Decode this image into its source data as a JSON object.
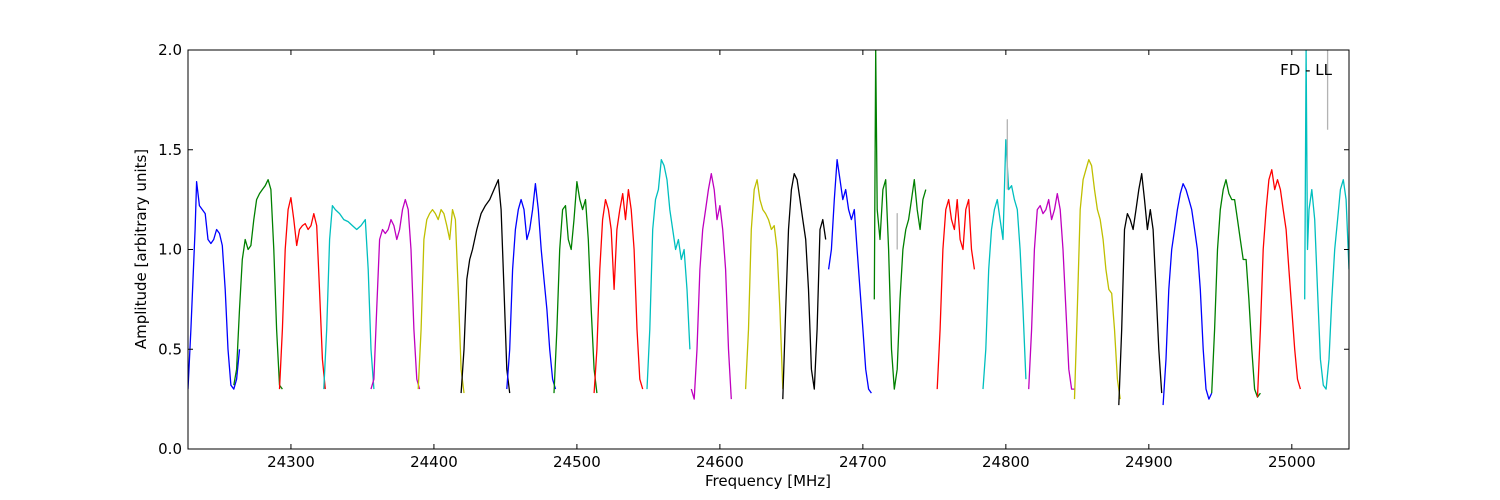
{
  "chart_data": {
    "type": "line",
    "title": "",
    "xlabel": "Frequency [MHz]",
    "ylabel": "Amplitude [arbitrary units]",
    "annotation": "FD - LL",
    "xlim": [
      24228,
      25040
    ],
    "ylim": [
      0.0,
      2.0
    ],
    "x_ticks": [
      24300,
      24400,
      24500,
      24600,
      24700,
      24800,
      24900,
      25000
    ],
    "y_ticks": [
      0.0,
      0.5,
      1.0,
      1.5,
      2.0
    ],
    "x_tick_labels": [
      "24300",
      "24400",
      "24500",
      "24600",
      "24700",
      "24800",
      "24900",
      "25000"
    ],
    "y_tick_labels": [
      "0.0",
      "0.5",
      "1.0",
      "1.5",
      "2.0"
    ],
    "grid": false,
    "legend": "none",
    "series": [
      {
        "color": "#0000ff",
        "x": [
          24228,
          24230,
          24233,
          24234,
          24236,
          24238,
          24240,
          24242,
          24244,
          24246,
          24248,
          24250,
          24252,
          24254,
          24256,
          24258,
          24260,
          24262,
          24264
        ],
        "y": [
          0.3,
          0.6,
          1.1,
          1.34,
          1.22,
          1.2,
          1.18,
          1.05,
          1.03,
          1.05,
          1.1,
          1.08,
          1.02,
          0.8,
          0.5,
          0.32,
          0.3,
          0.35,
          0.5
        ]
      },
      {
        "color": "#008000",
        "x": [
          24260,
          24262,
          24264,
          24266,
          24268,
          24270,
          24272,
          24274,
          24276,
          24278,
          24280,
          24282,
          24284,
          24286,
          24288,
          24290,
          24292,
          24294
        ],
        "y": [
          0.32,
          0.4,
          0.7,
          0.95,
          1.05,
          1.0,
          1.02,
          1.15,
          1.25,
          1.28,
          1.3,
          1.32,
          1.35,
          1.3,
          1.0,
          0.6,
          0.32,
          0.3
        ]
      },
      {
        "color": "#ff0000",
        "x": [
          24292,
          24294,
          24296,
          24298,
          24300,
          24302,
          24304,
          24306,
          24308,
          24310,
          24312,
          24314,
          24316,
          24318,
          24320,
          24322,
          24324
        ],
        "y": [
          0.3,
          0.6,
          1.0,
          1.2,
          1.26,
          1.15,
          1.02,
          1.1,
          1.12,
          1.13,
          1.1,
          1.12,
          1.18,
          1.12,
          0.8,
          0.45,
          0.3
        ]
      },
      {
        "color": "#00bfbf",
        "x": [
          24323,
          24325,
          24327,
          24329,
          24331,
          24334,
          24337,
          24340,
          24343,
          24346,
          24349,
          24352,
          24354,
          24356,
          24358
        ],
        "y": [
          0.3,
          0.6,
          1.05,
          1.22,
          1.2,
          1.18,
          1.15,
          1.14,
          1.12,
          1.1,
          1.12,
          1.15,
          0.9,
          0.5,
          0.3
        ]
      },
      {
        "color": "#bf00bf",
        "x": [
          24356,
          24358,
          24360,
          24362,
          24364,
          24366,
          24368,
          24370,
          24372,
          24374,
          24376,
          24378,
          24380,
          24382,
          24384,
          24386,
          24388,
          24390
        ],
        "y": [
          0.3,
          0.35,
          0.7,
          1.05,
          1.1,
          1.08,
          1.1,
          1.15,
          1.12,
          1.05,
          1.1,
          1.2,
          1.25,
          1.2,
          1.0,
          0.6,
          0.35,
          0.3
        ]
      },
      {
        "color": "#bfbf00",
        "x": [
          24389,
          24391,
          24393,
          24395,
          24397,
          24399,
          24401,
          24403,
          24405,
          24407,
          24409,
          24411,
          24413,
          24415,
          24417,
          24419,
          24421
        ],
        "y": [
          0.3,
          0.6,
          1.05,
          1.15,
          1.18,
          1.2,
          1.18,
          1.15,
          1.2,
          1.18,
          1.12,
          1.05,
          1.2,
          1.15,
          0.8,
          0.4,
          0.28
        ]
      },
      {
        "color": "#000000",
        "x": [
          24419,
          24421,
          24423,
          24425,
          24427,
          24430,
          24433,
          24436,
          24439,
          24442,
          24445,
          24447,
          24449,
          24451,
          24453
        ],
        "y": [
          0.28,
          0.5,
          0.85,
          0.95,
          1.0,
          1.1,
          1.18,
          1.22,
          1.25,
          1.3,
          1.35,
          1.2,
          0.8,
          0.4,
          0.28
        ]
      },
      {
        "color": "#0000ff",
        "x": [
          24451,
          24453,
          24455,
          24457,
          24459,
          24461,
          24463,
          24465,
          24467,
          24469,
          24471,
          24473,
          24475,
          24477,
          24479,
          24481,
          24483,
          24485
        ],
        "y": [
          0.3,
          0.5,
          0.9,
          1.1,
          1.2,
          1.25,
          1.2,
          1.05,
          1.1,
          1.2,
          1.33,
          1.2,
          1.0,
          0.85,
          0.7,
          0.5,
          0.35,
          0.3
        ]
      },
      {
        "color": "#008000",
        "x": [
          24484,
          24486,
          24488,
          24490,
          24492,
          24494,
          24496,
          24498,
          24500,
          24502,
          24504,
          24506,
          24508,
          24510,
          24512,
          24514
        ],
        "y": [
          0.28,
          0.6,
          1.0,
          1.2,
          1.22,
          1.05,
          1.0,
          1.15,
          1.34,
          1.25,
          1.2,
          1.25,
          1.05,
          0.7,
          0.4,
          0.28
        ]
      },
      {
        "color": "#ff0000",
        "x": [
          24512,
          24514,
          24516,
          24518,
          24520,
          24522,
          24524,
          24526,
          24528,
          24530,
          24532,
          24534,
          24536,
          24538,
          24540,
          24542,
          24544,
          24546
        ],
        "y": [
          0.28,
          0.5,
          0.9,
          1.15,
          1.25,
          1.2,
          1.1,
          0.8,
          1.1,
          1.2,
          1.28,
          1.15,
          1.3,
          1.2,
          1.0,
          0.6,
          0.35,
          0.3
        ]
      },
      {
        "color": "#00bfbf",
        "x": [
          24549,
          24551,
          24553,
          24555,
          24557,
          24559,
          24561,
          24563,
          24565,
          24567,
          24569,
          24571,
          24573,
          24575,
          24577,
          24579
        ],
        "y": [
          0.3,
          0.6,
          1.1,
          1.25,
          1.3,
          1.45,
          1.42,
          1.35,
          1.2,
          1.1,
          1.0,
          1.05,
          0.95,
          1.0,
          0.8,
          0.5
        ]
      },
      {
        "color": "#bf00bf",
        "x": [
          24580,
          24582,
          24584,
          24586,
          24588,
          24590,
          24592,
          24594,
          24596,
          24598,
          24600,
          24602,
          24604,
          24606,
          24608
        ],
        "y": [
          0.3,
          0.25,
          0.5,
          0.9,
          1.1,
          1.2,
          1.3,
          1.38,
          1.3,
          1.15,
          1.22,
          1.1,
          0.9,
          0.5,
          0.25
        ]
      },
      {
        "color": "#bfbf00",
        "x": [
          24618,
          24620,
          24622,
          24624,
          24626,
          24628,
          24630,
          24632,
          24634,
          24636,
          24638,
          24640,
          24642,
          24644
        ],
        "y": [
          0.3,
          0.6,
          1.1,
          1.3,
          1.35,
          1.25,
          1.2,
          1.18,
          1.15,
          1.1,
          1.12,
          1.0,
          0.7,
          0.3
        ]
      },
      {
        "color": "#000000",
        "x": [
          24644,
          24646,
          24648,
          24650,
          24652,
          24654,
          24656,
          24658,
          24660,
          24662,
          24664,
          24666,
          24668,
          24670,
          24672,
          24674
        ],
        "y": [
          0.25,
          0.7,
          1.1,
          1.3,
          1.38,
          1.35,
          1.25,
          1.15,
          1.05,
          0.8,
          0.4,
          0.3,
          0.6,
          1.1,
          1.15,
          1.05
        ]
      },
      {
        "color": "#0000ff",
        "x": [
          24676,
          24678,
          24680,
          24682,
          24684,
          24686,
          24688,
          24690,
          24692,
          24694,
          24696,
          24698,
          24700,
          24702,
          24704,
          24706
        ],
        "y": [
          0.9,
          1.0,
          1.25,
          1.45,
          1.35,
          1.25,
          1.3,
          1.2,
          1.15,
          1.2,
          1.0,
          0.8,
          0.6,
          0.4,
          0.3,
          0.28
        ]
      },
      {
        "color": "#008000",
        "x": [
          24708,
          24709,
          24710,
          24712,
          24714,
          24716,
          24718,
          24720,
          24722,
          24724,
          24726,
          24728,
          24730,
          24732,
          24734,
          24736,
          24738,
          24740,
          24742,
          24744
        ],
        "y": [
          0.75,
          2.0,
          1.2,
          1.05,
          1.3,
          1.35,
          1.0,
          0.5,
          0.3,
          0.4,
          0.75,
          1.0,
          1.1,
          1.15,
          1.25,
          1.35,
          1.2,
          1.1,
          1.25,
          1.3
        ]
      },
      {
        "color": "#ff0000",
        "x": [
          24752,
          24754,
          24756,
          24758,
          24760,
          24762,
          24764,
          24766,
          24768,
          24770,
          24772,
          24774,
          24776,
          24778
        ],
        "y": [
          0.3,
          0.6,
          1.0,
          1.2,
          1.25,
          1.15,
          1.1,
          1.25,
          1.05,
          1.0,
          1.2,
          1.25,
          1.0,
          0.9
        ]
      },
      {
        "color": "#00bfbf",
        "x": [
          24784,
          24786,
          24788,
          24790,
          24792,
          24794,
          24796,
          24798,
          24800,
          24802,
          24804,
          24806,
          24808,
          24810,
          24812,
          24814
        ],
        "y": [
          0.3,
          0.5,
          0.9,
          1.1,
          1.2,
          1.25,
          1.15,
          1.05,
          1.55,
          1.3,
          1.32,
          1.25,
          1.2,
          1.0,
          0.7,
          0.35
        ]
      },
      {
        "color": "#bf00bf",
        "x": [
          24816,
          24818,
          24820,
          24822,
          24824,
          24826,
          24828,
          24830,
          24832,
          24834,
          24836,
          24838,
          24840,
          24842,
          24844,
          24846,
          24848
        ],
        "y": [
          0.3,
          0.6,
          1.0,
          1.2,
          1.22,
          1.18,
          1.2,
          1.25,
          1.15,
          1.2,
          1.28,
          1.2,
          1.0,
          0.7,
          0.4,
          0.3,
          0.3
        ]
      },
      {
        "color": "#bfbf00",
        "x": [
          24848,
          24850,
          24852,
          24854,
          24856,
          24858,
          24860,
          24862,
          24864,
          24866,
          24868,
          24870,
          24872,
          24874,
          24876,
          24878,
          24880
        ],
        "y": [
          0.25,
          0.7,
          1.2,
          1.35,
          1.4,
          1.45,
          1.42,
          1.3,
          1.2,
          1.15,
          1.05,
          0.9,
          0.8,
          0.78,
          0.6,
          0.35,
          0.25
        ]
      },
      {
        "color": "#000000",
        "x": [
          24879,
          24881,
          24883,
          24885,
          24887,
          24889,
          24891,
          24893,
          24895,
          24897,
          24899,
          24901,
          24903,
          24905,
          24907,
          24909
        ],
        "y": [
          0.22,
          0.6,
          1.1,
          1.18,
          1.15,
          1.1,
          1.2,
          1.3,
          1.38,
          1.25,
          1.1,
          1.2,
          1.1,
          0.8,
          0.5,
          0.28
        ]
      },
      {
        "color": "#0000ff",
        "x": [
          24910,
          24912,
          24914,
          24916,
          24918,
          24920,
          24922,
          24924,
          24926,
          24928,
          24930,
          24932,
          24934,
          24936,
          24938,
          24940,
          24942,
          24944
        ],
        "y": [
          0.22,
          0.45,
          0.8,
          1.0,
          1.1,
          1.2,
          1.28,
          1.33,
          1.3,
          1.25,
          1.2,
          1.1,
          1.0,
          0.8,
          0.5,
          0.3,
          0.25,
          0.28
        ]
      },
      {
        "color": "#008000",
        "x": [
          24944,
          24946,
          24948,
          24950,
          24952,
          24954,
          24956,
          24958,
          24960,
          24962,
          24964,
          24966,
          24968,
          24970,
          24972,
          24974,
          24976,
          24978
        ],
        "y": [
          0.28,
          0.6,
          1.0,
          1.2,
          1.3,
          1.35,
          1.28,
          1.25,
          1.25,
          1.15,
          1.05,
          0.95,
          0.95,
          0.75,
          0.5,
          0.3,
          0.26,
          0.28
        ]
      },
      {
        "color": "#ff0000",
        "x": [
          24976,
          24978,
          24980,
          24982,
          24984,
          24986,
          24988,
          24990,
          24992,
          24994,
          24996,
          24998,
          25000,
          25002,
          25004,
          25006
        ],
        "y": [
          0.26,
          0.6,
          1.0,
          1.2,
          1.35,
          1.4,
          1.3,
          1.35,
          1.3,
          1.2,
          1.1,
          0.9,
          0.7,
          0.5,
          0.35,
          0.3
        ]
      },
      {
        "color": "#00bfbf",
        "x": [
          25009,
          25010,
          25011,
          25012,
          25014,
          25016,
          25018,
          25020,
          25022,
          25024,
          25026,
          25028,
          25030,
          25032,
          25034,
          25036,
          25038,
          25040
        ],
        "y": [
          0.75,
          2.0,
          1.0,
          1.2,
          1.3,
          1.15,
          0.8,
          0.45,
          0.32,
          0.3,
          0.45,
          0.75,
          1.0,
          1.15,
          1.3,
          1.35,
          1.25,
          0.9
        ]
      },
      {
        "color": "#b3b3b3",
        "x": [
          24724,
          24724,
          24724
        ],
        "y": [
          1.0,
          1.18,
          1.0
        ]
      },
      {
        "color": "#b3b3b3",
        "x": [
          24801,
          24801,
          24801
        ],
        "y": [
          1.3,
          1.65,
          1.3
        ]
      },
      {
        "color": "#b3b3b3",
        "x": [
          25025,
          25025,
          25025
        ],
        "y": [
          1.6,
          2.0,
          1.6
        ]
      }
    ]
  }
}
